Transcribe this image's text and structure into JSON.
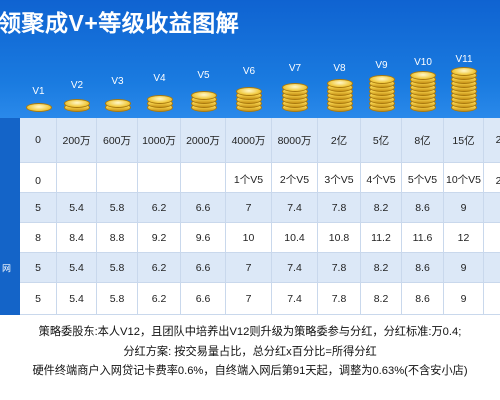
{
  "title": "领聚成V+等级收益图解",
  "levels": [
    "V1",
    "V2",
    "V3",
    "V4",
    "V5",
    "V6",
    "V7",
    "V8",
    "V9",
    "V10",
    "V11"
  ],
  "row_labels": [
    "",
    "",
    "",
    "",
    "网",
    ""
  ],
  "rows": [
    [
      "0",
      "200万",
      "600万",
      "1000万",
      "2000万",
      "4000万",
      "8000万",
      "2亿",
      "5亿",
      "8亿",
      "15亿",
      "2"
    ],
    [
      "0",
      "",
      "",
      "",
      "",
      "1个V5",
      "2个V5",
      "3个V5",
      "4个V5",
      "5个V5",
      "10个V5",
      "2"
    ],
    [
      "5",
      "5.4",
      "5.8",
      "6.2",
      "6.6",
      "7",
      "7.4",
      "7.8",
      "8.2",
      "8.6",
      "9",
      ""
    ],
    [
      "8",
      "8.4",
      "8.8",
      "9.2",
      "9.6",
      "10",
      "10.4",
      "10.8",
      "11.2",
      "11.6",
      "12",
      ""
    ],
    [
      "5",
      "5.4",
      "5.8",
      "6.2",
      "6.6",
      "7",
      "7.4",
      "7.8",
      "8.2",
      "8.6",
      "9",
      ""
    ],
    [
      "5",
      "5.4",
      "5.8",
      "6.2",
      "6.6",
      "7",
      "7.4",
      "7.8",
      "8.2",
      "8.6",
      "9",
      ""
    ]
  ],
  "notes": [
    "策略委股东:本人V12，且团队中培养出V12则升级为策略委参与分红，分红标准:万0.4;",
    "分红方案: 按交易量占比，总分红x百分比=所得分红",
    "硬件终端商户入网贷记卡费率0.6%，自终端入网后第91天起，调整为0.63%(不含安小店)"
  ],
  "colors": {
    "header_blue": "#1673d8",
    "row_blue": "#dce8f7",
    "row_white": "#ffffff",
    "gold": "#f2cc45"
  },
  "coin_counts": [
    1,
    2,
    2,
    3,
    4,
    5,
    6,
    7,
    8,
    9,
    10
  ]
}
